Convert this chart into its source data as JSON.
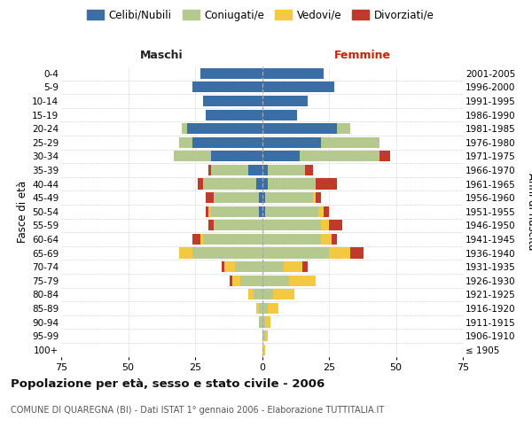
{
  "age_groups": [
    "100+",
    "95-99",
    "90-94",
    "85-89",
    "80-84",
    "75-79",
    "70-74",
    "65-69",
    "60-64",
    "55-59",
    "50-54",
    "45-49",
    "40-44",
    "35-39",
    "30-34",
    "25-29",
    "20-24",
    "15-19",
    "10-14",
    "5-9",
    "0-4"
  ],
  "birth_years": [
    "≤ 1905",
    "1906-1910",
    "1911-1915",
    "1916-1920",
    "1921-1925",
    "1926-1930",
    "1931-1935",
    "1936-1940",
    "1941-1945",
    "1946-1950",
    "1951-1955",
    "1956-1960",
    "1961-1965",
    "1966-1970",
    "1971-1975",
    "1976-1980",
    "1981-1985",
    "1986-1990",
    "1991-1995",
    "1996-2000",
    "2001-2005"
  ],
  "males": {
    "celibe": [
      0,
      0,
      0,
      0,
      0,
      0,
      0,
      0,
      0,
      0,
      1,
      1,
      2,
      5,
      19,
      26,
      28,
      21,
      22,
      26,
      23
    ],
    "coniugato": [
      0,
      0,
      1,
      1,
      3,
      8,
      10,
      26,
      22,
      18,
      18,
      17,
      20,
      14,
      14,
      5,
      2,
      0,
      0,
      0,
      0
    ],
    "vedovo": [
      0,
      0,
      0,
      1,
      2,
      3,
      4,
      5,
      1,
      0,
      1,
      0,
      0,
      0,
      0,
      0,
      0,
      0,
      0,
      0,
      0
    ],
    "divorziato": [
      0,
      0,
      0,
      0,
      0,
      1,
      1,
      0,
      3,
      2,
      1,
      3,
      2,
      1,
      0,
      0,
      0,
      0,
      0,
      0,
      0
    ]
  },
  "females": {
    "nubile": [
      0,
      0,
      0,
      0,
      0,
      0,
      0,
      0,
      0,
      0,
      1,
      1,
      2,
      2,
      14,
      22,
      28,
      13,
      17,
      27,
      23
    ],
    "coniugata": [
      0,
      1,
      1,
      2,
      4,
      10,
      8,
      25,
      22,
      22,
      20,
      18,
      18,
      14,
      30,
      22,
      5,
      0,
      0,
      0,
      0
    ],
    "vedova": [
      1,
      1,
      2,
      4,
      8,
      10,
      7,
      8,
      4,
      3,
      2,
      1,
      0,
      0,
      0,
      0,
      0,
      0,
      0,
      0,
      0
    ],
    "divorziata": [
      0,
      0,
      0,
      0,
      0,
      0,
      2,
      5,
      2,
      5,
      2,
      2,
      8,
      3,
      4,
      0,
      0,
      0,
      0,
      0,
      0
    ]
  },
  "colors": {
    "celibe": "#3a6ea5",
    "coniugato": "#b5c98e",
    "vedovo": "#f5c842",
    "divorziato": "#c0392b"
  },
  "xlim": 75,
  "title": "Popolazione per età, sesso e stato civile - 2006",
  "subtitle": "COMUNE DI QUAREGNA (BI) - Dati ISTAT 1° gennaio 2006 - Elaborazione TUTTITALIA.IT",
  "ylabel_left": "Fasce di età",
  "ylabel_right": "Anni di nascita",
  "label_maschi": "Maschi",
  "label_femmine": "Femmine",
  "legend_labels": [
    "Celibi/Nubili",
    "Coniugati/e",
    "Vedovi/e",
    "Divorziati/e"
  ],
  "background_color": "#ffffff",
  "grid_color": "#cccccc"
}
